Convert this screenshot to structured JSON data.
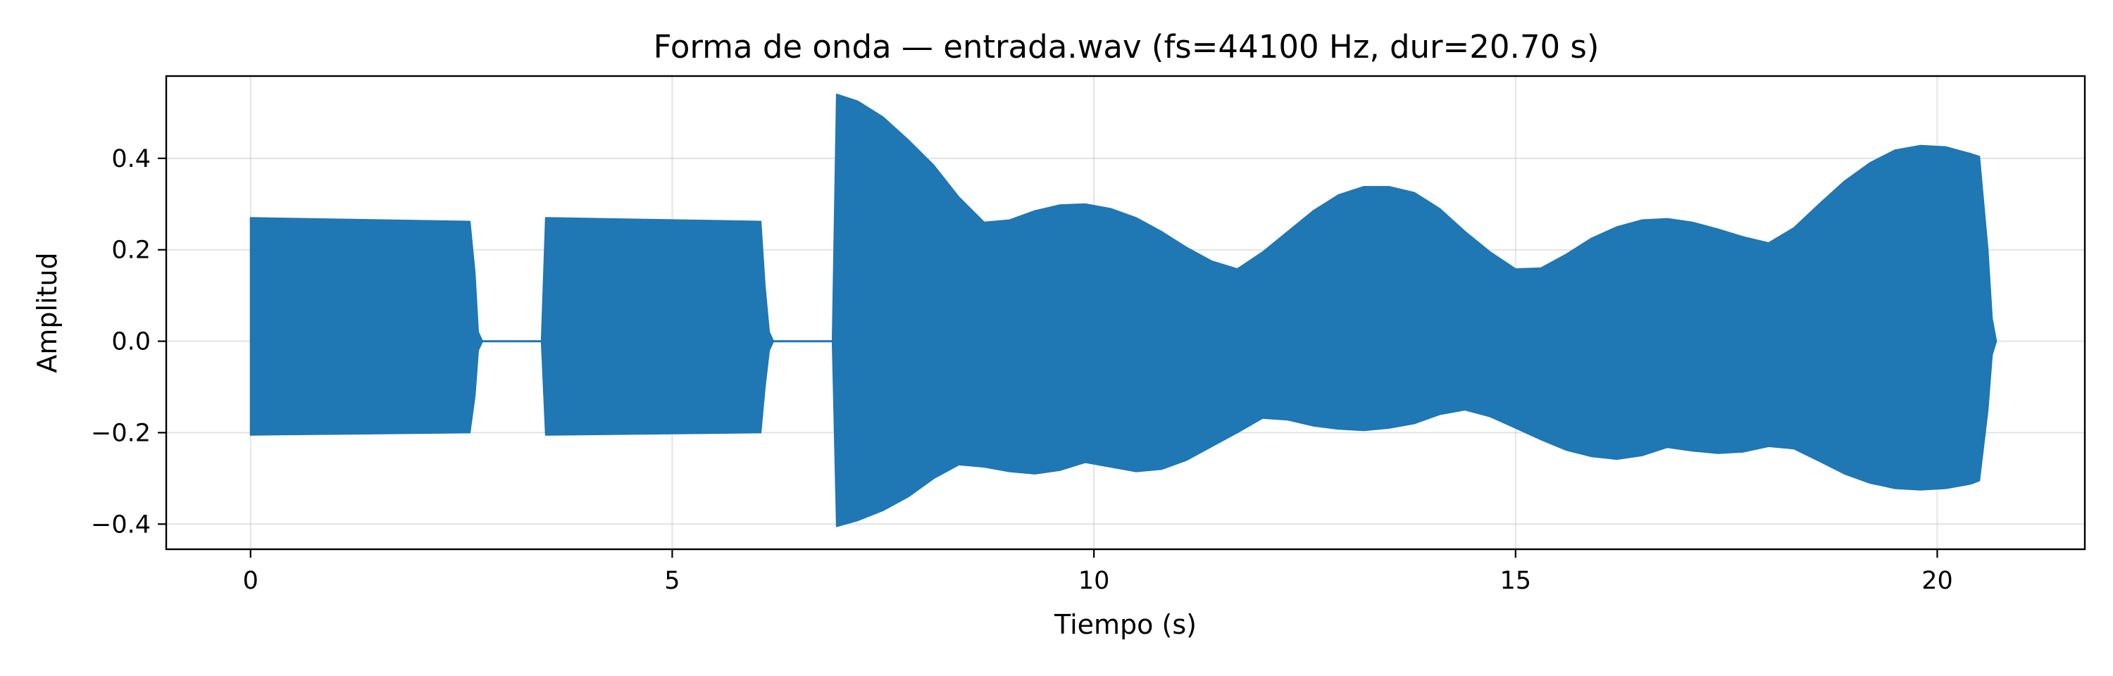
{
  "chart_data": {
    "type": "area",
    "title": "Forma de onda — entrada.wav (fs=44100 Hz, dur=20.70 s)",
    "xlabel": "Tiempo (s)",
    "ylabel": "Amplitud",
    "xlim": [
      -1.0,
      21.75
    ],
    "ylim": [
      -0.455,
      0.58
    ],
    "x_ticks": [
      0,
      5,
      10,
      15,
      20
    ],
    "x_tick_labels": [
      "0",
      "5",
      "10",
      "15",
      "20"
    ],
    "y_ticks": [
      -0.4,
      -0.2,
      0.0,
      0.2,
      0.4
    ],
    "y_tick_labels": [
      "−0.4",
      "−0.2",
      "0.0",
      "0.2",
      "0.4"
    ],
    "grid": true,
    "color": "#1f77b4",
    "series": [
      {
        "x": [
          0.0,
          2.6,
          2.66,
          2.7,
          2.75,
          3.45,
          3.5,
          6.05,
          6.1,
          6.15,
          6.2,
          6.9,
          6.95,
          7.2,
          7.5,
          7.8,
          8.1,
          8.4,
          8.7,
          9.0,
          9.3,
          9.6,
          9.9,
          10.2,
          10.5,
          10.8,
          11.1,
          11.4,
          11.7,
          12.0,
          12.3,
          12.6,
          12.9,
          13.2,
          13.5,
          13.8,
          14.1,
          14.4,
          14.7,
          15.0,
          15.3,
          15.6,
          15.9,
          16.2,
          16.5,
          16.8,
          17.1,
          17.4,
          17.7,
          18.0,
          18.3,
          18.6,
          18.9,
          19.2,
          19.5,
          19.8,
          20.1,
          20.4,
          20.5,
          20.6,
          20.65,
          20.7
        ],
        "upper": [
          0.27,
          0.262,
          0.15,
          0.02,
          0.0,
          0.0,
          0.27,
          0.262,
          0.12,
          0.02,
          0.0,
          0.0,
          0.54,
          0.525,
          0.49,
          0.44,
          0.385,
          0.315,
          0.26,
          0.265,
          0.285,
          0.298,
          0.3,
          0.29,
          0.27,
          0.24,
          0.205,
          0.175,
          0.158,
          0.195,
          0.24,
          0.285,
          0.32,
          0.338,
          0.338,
          0.325,
          0.29,
          0.24,
          0.195,
          0.158,
          0.16,
          0.19,
          0.225,
          0.25,
          0.265,
          0.268,
          0.26,
          0.245,
          0.228,
          0.215,
          0.248,
          0.3,
          0.35,
          0.39,
          0.418,
          0.428,
          0.425,
          0.41,
          0.404,
          0.2,
          0.05,
          0.0
        ],
        "lower": [
          -0.205,
          -0.2,
          -0.12,
          -0.02,
          0.0,
          0.0,
          -0.205,
          -0.2,
          -0.1,
          -0.02,
          0.0,
          0.0,
          -0.405,
          -0.392,
          -0.37,
          -0.34,
          -0.3,
          -0.27,
          -0.275,
          -0.285,
          -0.29,
          -0.282,
          -0.265,
          -0.275,
          -0.285,
          -0.28,
          -0.26,
          -0.23,
          -0.2,
          -0.168,
          -0.172,
          -0.185,
          -0.192,
          -0.195,
          -0.19,
          -0.18,
          -0.16,
          -0.15,
          -0.165,
          -0.19,
          -0.215,
          -0.238,
          -0.252,
          -0.258,
          -0.25,
          -0.232,
          -0.24,
          -0.245,
          -0.242,
          -0.23,
          -0.235,
          -0.262,
          -0.29,
          -0.31,
          -0.322,
          -0.325,
          -0.322,
          -0.312,
          -0.305,
          -0.15,
          -0.03,
          0.0
        ]
      }
    ]
  }
}
